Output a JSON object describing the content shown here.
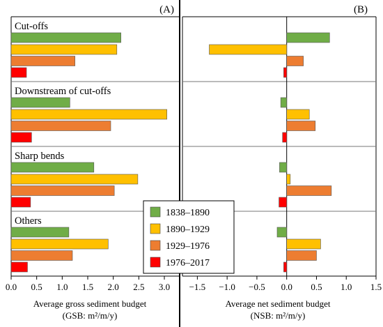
{
  "chart_data": [
    {
      "type": "bar",
      "orientation": "horizontal",
      "panel_label": "(A)",
      "categories": [
        "Cut-offs",
        "Downstream of cut-offs",
        "Sharp bends",
        "Others"
      ],
      "series": [
        {
          "name": "1838–1890",
          "color": "#70ad47",
          "values": [
            2.15,
            1.15,
            1.62,
            1.13
          ]
        },
        {
          "name": "1890–1929",
          "color": "#ffc000",
          "values": [
            2.07,
            3.05,
            2.48,
            1.9
          ]
        },
        {
          "name": "1929–1976",
          "color": "#ed7d31",
          "values": [
            1.25,
            1.95,
            2.02,
            1.2
          ]
        },
        {
          "name": "1976–2017",
          "color": "#ff0000",
          "values": [
            0.3,
            0.4,
            0.38,
            0.32
          ]
        }
      ],
      "xlim": [
        0,
        3.3
      ],
      "xticks": [
        0.0,
        0.5,
        1.0,
        1.5,
        2.0,
        2.5,
        3.0
      ],
      "xtick_labels": [
        "0.0",
        "0.5",
        "1.0",
        "1.5",
        "2.0",
        "2.5",
        "3.0"
      ],
      "xlabel_line1": "Average gross sediment budget",
      "xlabel_line2": "(GSB: m²/m/y)",
      "grid": false
    },
    {
      "type": "bar",
      "orientation": "horizontal",
      "panel_label": "(B)",
      "categories": [
        "Cut-offs",
        "Downstream of cut-offs",
        "Sharp bends",
        "Others"
      ],
      "series": [
        {
          "name": "1838–1890",
          "color": "#70ad47",
          "values": [
            0.72,
            -0.1,
            -0.12,
            -0.16
          ]
        },
        {
          "name": "1890–1929",
          "color": "#ffc000",
          "values": [
            -1.3,
            0.38,
            0.06,
            0.57
          ]
        },
        {
          "name": "1929–1976",
          "color": "#ed7d31",
          "values": [
            0.28,
            0.48,
            0.75,
            0.5
          ]
        },
        {
          "name": "1976–2017",
          "color": "#ff0000",
          "values": [
            -0.05,
            -0.07,
            -0.13,
            -0.05
          ]
        }
      ],
      "xlim": [
        -1.75,
        1.5
      ],
      "xticks": [
        -1.5,
        -1.0,
        -0.5,
        0.0,
        0.5,
        1.0,
        1.5
      ],
      "xtick_labels": [
        "−1.5",
        "−1.0",
        "−0.5",
        "0.0",
        "0.5",
        "1.0",
        "1.5"
      ],
      "xlabel_line1": "Average net sediment budget",
      "xlabel_line2": "(NSB: m²/m/y)",
      "grid": false
    }
  ],
  "legend": {
    "placement": "center-overlapping-panel-A",
    "items": [
      {
        "label": "1838–1890",
        "color": "#70ad47"
      },
      {
        "label": "1890–1929",
        "color": "#ffc000"
      },
      {
        "label": "1929–1976",
        "color": "#ed7d31"
      },
      {
        "label": "1976–2017",
        "color": "#ff0000"
      }
    ]
  }
}
